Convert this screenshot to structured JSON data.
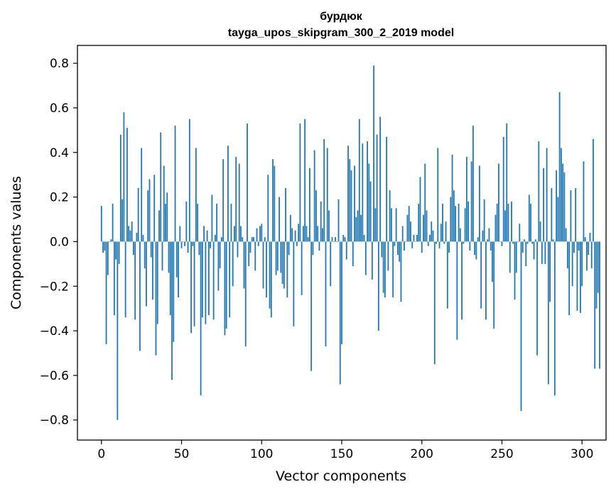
{
  "colors": {
    "bar": "#1f77b4",
    "axis": "#000000",
    "background": "#ffffff"
  },
  "chart_data": {
    "type": "bar",
    "title": "бурдюк",
    "subtitle": "tayga_upos_skipgram_300_2_2019 model",
    "xlabel": "Vector components",
    "ylabel": "Components values",
    "xlim": [
      -15,
      315
    ],
    "ylim": [
      -0.89,
      0.88
    ],
    "xticks": [
      0,
      50,
      100,
      150,
      200,
      250,
      300
    ],
    "xtick_labels": [
      "0",
      "50",
      "100",
      "150",
      "200",
      "250",
      "300"
    ],
    "yticks": [
      0.8,
      0.6,
      0.4,
      0.2,
      0.0,
      -0.2,
      -0.4,
      -0.6,
      -0.8
    ],
    "ytick_labels": [
      "0.8",
      "0.6",
      "0.4",
      "0.2",
      "0.0",
      "−0.2",
      "−0.4",
      "−0.6",
      "−0.8"
    ],
    "grid": false,
    "series": [
      {
        "name": "бурдюк",
        "values": [
          0.16,
          -0.05,
          -0.04,
          -0.46,
          -0.15,
          0.0,
          0.01,
          0.17,
          -0.33,
          -0.08,
          -0.8,
          -0.1,
          0.48,
          0.19,
          0.58,
          -0.34,
          0.51,
          0.07,
          0.05,
          0.09,
          -0.06,
          -0.35,
          0.04,
          0.24,
          -0.49,
          0.42,
          0.03,
          -0.12,
          -0.29,
          0.23,
          0.28,
          -0.07,
          -0.26,
          0.3,
          -0.51,
          -0.37,
          0.14,
          0.49,
          -0.13,
          0.34,
          0.17,
          0.22,
          -0.14,
          -0.33,
          -0.62,
          -0.45,
          0.52,
          -0.16,
          -0.25,
          0.07,
          -0.03,
          0.0,
          -0.02,
          0.18,
          -0.05,
          0.55,
          -0.41,
          -0.02,
          -0.38,
          0.42,
          0.17,
          -0.06,
          -0.69,
          -0.34,
          0.07,
          -0.37,
          0.05,
          -0.33,
          -0.03,
          0.21,
          -0.35,
          0.03,
          0.17,
          -0.22,
          -0.12,
          0.02,
          0.37,
          -0.42,
          -0.39,
          0.43,
          -0.34,
          0.17,
          -0.2,
          0.07,
          0.38,
          -0.07,
          0.35,
          0.07,
          0.02,
          -0.21,
          -0.47,
          0.53,
          -0.11,
          -0.05,
          0.02,
          0.02,
          -0.13,
          0.06,
          -0.02,
          0.07,
          0.08,
          -0.21,
          0.02,
          -0.25,
          0.3,
          -0.3,
          -0.34,
          0.37,
          0.34,
          -0.15,
          -0.13,
          0.2,
          -0.14,
          -0.19,
          -0.21,
          0.24,
          -0.25,
          -0.06,
          0.12,
          0.06,
          -0.38,
          0.05,
          -0.02,
          0.08,
          0.53,
          -0.24,
          0.07,
          0.55,
          0.07,
          0.02,
          0.33,
          -0.58,
          -0.06,
          0.41,
          0.23,
          0.07,
          -0.04,
          0.18,
          0.06,
          0.46,
          -0.47,
          0.42,
          0.14,
          -0.2,
          0.02,
          0.0,
          0.02,
          0.0,
          0.19,
          -0.64,
          -0.46,
          0.03,
          0.02,
          -0.08,
          0.43,
          0.37,
          0.32,
          -0.11,
          0.34,
          0.11,
          0.14,
          0.55,
          0.12,
          0.44,
          0.03,
          -0.15,
          0.45,
          0.35,
          0.27,
          -0.17,
          0.79,
          0.15,
          0.48,
          -0.4,
          0.56,
          -0.07,
          -0.23,
          -0.25,
          0.47,
          -0.13,
          0.23,
          0.15,
          -0.25,
          -0.02,
          0.15,
          -0.06,
          -0.09,
          -0.27,
          0.07,
          -0.04,
          0.0,
          0.12,
          0.16,
          0.09,
          -0.03,
          0.03,
          0.0,
          0.03,
          0.17,
          0.29,
          -0.05,
          0.12,
          0.35,
          0.14,
          -0.02,
          0.03,
          0.09,
          0.05,
          -0.55,
          -0.01,
          0.42,
          -0.03,
          0.08,
          0.17,
          -0.01,
          0.09,
          -0.3,
          -0.05,
          0.2,
          0.39,
          0.23,
          0.16,
          -0.44,
          0.17,
          0.06,
          -0.35,
          -0.01,
          0.15,
          0.38,
          0.18,
          -0.04,
          0.36,
          0.52,
          -0.06,
          -0.08,
          0.02,
          0.34,
          -0.3,
          0.05,
          0.19,
          -0.35,
          0.01,
          0.06,
          -0.04,
          -0.18,
          -0.39,
          0.12,
          0.17,
          0.35,
          0.0,
          -0.02,
          0.47,
          0.14,
          0.53,
          0.17,
          -0.14,
          0.18,
          -0.01,
          -0.26,
          -0.14,
          0.0,
          0.08,
          -0.76,
          -0.05,
          0.01,
          -0.11,
          -0.01,
          0.21,
          0.17,
          -0.01,
          -0.08,
          0.01,
          -0.51,
          0.45,
          0.09,
          -0.1,
          0.33,
          -0.1,
          0.42,
          -0.64,
          -0.27,
          0.24,
          0.01,
          -0.69,
          0.32,
          0.2,
          0.67,
          0.42,
          0.35,
          0.31,
          0.06,
          -0.12,
          -0.33,
          0.23,
          -0.2,
          -0.05,
          0.24,
          -0.31,
          -0.04,
          -0.32,
          -0.2,
          0.36,
          0.02,
          -0.13,
          -0.06,
          0.04,
          -0.12,
          0.46,
          -0.57,
          -0.3,
          -0.23,
          -0.57
        ]
      }
    ]
  }
}
